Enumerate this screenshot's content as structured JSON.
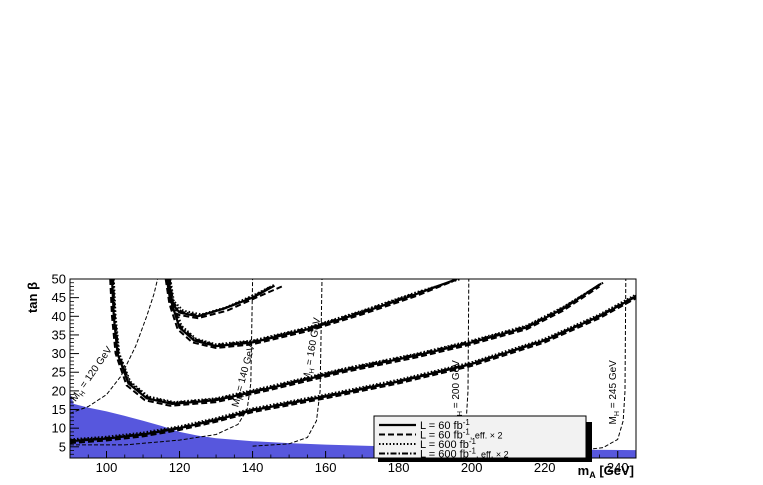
{
  "chart_data": {
    "type": "line",
    "title": "",
    "xlabel": "m_A [GeV]",
    "xlabel_main": "m",
    "xlabel_sub": "A",
    "xlabel_unit": " [GeV]",
    "ylabel": "tan β",
    "xlim": [
      90,
      245
    ],
    "ylim": [
      2,
      50
    ],
    "xticks": [
      100,
      120,
      140,
      160,
      180,
      200,
      220,
      240
    ],
    "yticks": [
      5,
      10,
      15,
      20,
      25,
      30,
      35,
      40,
      45,
      50
    ],
    "grid": false,
    "excluded_region": {
      "color": "#5757dd",
      "boundary": [
        [
          90,
          19.5
        ],
        [
          91,
          16.5
        ],
        [
          95,
          15.5
        ],
        [
          100,
          14.5
        ],
        [
          105,
          13.3
        ],
        [
          110,
          12.0
        ],
        [
          115,
          10.6
        ],
        [
          120,
          9.0
        ],
        [
          125,
          8.0
        ],
        [
          130,
          7.3
        ],
        [
          140,
          6.5
        ],
        [
          150,
          6.0
        ],
        [
          160,
          5.6
        ],
        [
          180,
          5.0
        ],
        [
          200,
          4.6
        ],
        [
          220,
          4.3
        ],
        [
          245,
          4.1
        ]
      ]
    },
    "series": [
      {
        "style": "solid",
        "points": [
          [
            116.5,
            50
          ],
          [
            117.5,
            44
          ],
          [
            120,
            41
          ],
          [
            125,
            40
          ],
          [
            132,
            42
          ],
          [
            140,
            45
          ],
          [
            146,
            48.2
          ]
        ]
      },
      {
        "style": "dashed",
        "points": [
          [
            116.2,
            50
          ],
          [
            117.2,
            43.5
          ],
          [
            119,
            40.5
          ],
          [
            125,
            39.5
          ],
          [
            133,
            41.5
          ],
          [
            141,
            45
          ],
          [
            148,
            48
          ]
        ]
      },
      {
        "style": "dotted",
        "points": [
          [
            117,
            50
          ],
          [
            118,
            44.5
          ],
          [
            121,
            41.5
          ],
          [
            126,
            40.5
          ],
          [
            133,
            42.5
          ],
          [
            141,
            46
          ],
          [
            145,
            48
          ]
        ]
      },
      {
        "style": "dashdot",
        "points": [
          [
            116.8,
            50
          ],
          [
            117.8,
            44.2
          ],
          [
            120.5,
            41.2
          ],
          [
            125.5,
            40.2
          ],
          [
            132.5,
            42.2
          ],
          [
            140.5,
            45.5
          ],
          [
            146,
            48.5
          ]
        ]
      },
      {
        "style": "solid",
        "points": [
          [
            101.5,
            50
          ],
          [
            102,
            40
          ],
          [
            103,
            30
          ],
          [
            106,
            22
          ],
          [
            111,
            18
          ],
          [
            118,
            16.5
          ],
          [
            130,
            17.5
          ],
          [
            145,
            20.8
          ],
          [
            165,
            25.5
          ],
          [
            185,
            29.5
          ],
          [
            200,
            33
          ],
          [
            215,
            37
          ],
          [
            225,
            42
          ],
          [
            235,
            48.5
          ]
        ]
      },
      {
        "style": "dashed",
        "points": [
          [
            101,
            50
          ],
          [
            101.5,
            40
          ],
          [
            102.5,
            30
          ],
          [
            105.5,
            21.5
          ],
          [
            110.5,
            17.5
          ],
          [
            117.5,
            16
          ],
          [
            130,
            17
          ],
          [
            145,
            20.3
          ],
          [
            165,
            25
          ],
          [
            185,
            29
          ],
          [
            200,
            32.5
          ],
          [
            215,
            36.5
          ],
          [
            225,
            41.5
          ],
          [
            235,
            48
          ]
        ]
      },
      {
        "style": "dotted",
        "points": [
          [
            102,
            50
          ],
          [
            102.5,
            40
          ],
          [
            103.5,
            30
          ],
          [
            106.5,
            22.5
          ],
          [
            111.5,
            18.5
          ],
          [
            118.5,
            17
          ],
          [
            130,
            18
          ],
          [
            145,
            21.3
          ],
          [
            165,
            26
          ],
          [
            185,
            30
          ],
          [
            200,
            33.5
          ],
          [
            215,
            37.5
          ],
          [
            225,
            42.5
          ],
          [
            236,
            49
          ]
        ]
      },
      {
        "style": "dashdot",
        "points": [
          [
            101.8,
            50
          ],
          [
            102.3,
            40
          ],
          [
            103.3,
            30
          ],
          [
            106.3,
            22.3
          ],
          [
            111.3,
            18.3
          ],
          [
            118.3,
            16.8
          ],
          [
            130,
            17.8
          ],
          [
            145,
            21
          ],
          [
            165,
            25.8
          ],
          [
            185,
            29.8
          ],
          [
            200,
            33.3
          ],
          [
            215,
            37.3
          ],
          [
            225,
            42.3
          ],
          [
            235.5,
            48.8
          ]
        ]
      },
      {
        "style": "solid",
        "points": [
          [
            117,
            50
          ],
          [
            118,
            43
          ],
          [
            120,
            37
          ],
          [
            124,
            33.5
          ],
          [
            130,
            32
          ],
          [
            140,
            33
          ],
          [
            155,
            36.5
          ],
          [
            170,
            41
          ],
          [
            185,
            46
          ],
          [
            196,
            50
          ]
        ]
      },
      {
        "style": "dashed",
        "points": [
          [
            116.5,
            50
          ],
          [
            117.5,
            42.5
          ],
          [
            119.5,
            36.5
          ],
          [
            123.5,
            33
          ],
          [
            130,
            31.5
          ],
          [
            140,
            32.5
          ],
          [
            155,
            36
          ],
          [
            170,
            40.5
          ],
          [
            185,
            45.5
          ],
          [
            195,
            49.5
          ]
        ]
      },
      {
        "style": "dotted",
        "points": [
          [
            117.5,
            50
          ],
          [
            118.5,
            43.5
          ],
          [
            120.5,
            37.5
          ],
          [
            124.5,
            34
          ],
          [
            130,
            32.5
          ],
          [
            140,
            33.5
          ],
          [
            155,
            37
          ],
          [
            170,
            41.5
          ],
          [
            185,
            46.5
          ],
          [
            197,
            50
          ]
        ]
      },
      {
        "style": "dashdot",
        "points": [
          [
            117.3,
            50
          ],
          [
            118.3,
            43.3
          ],
          [
            120.3,
            37.3
          ],
          [
            124.3,
            33.8
          ],
          [
            130,
            32.3
          ],
          [
            140,
            33.3
          ],
          [
            155,
            36.8
          ],
          [
            170,
            41.3
          ],
          [
            185,
            46.3
          ],
          [
            196.5,
            50
          ]
        ]
      },
      {
        "style": "solid",
        "points": [
          [
            90,
            6.5
          ],
          [
            100,
            7.2
          ],
          [
            110,
            8.3
          ],
          [
            120,
            10.0
          ],
          [
            130,
            12.2
          ],
          [
            140,
            14.8
          ],
          [
            160,
            18.5
          ],
          [
            180,
            22.5
          ],
          [
            200,
            27.2
          ],
          [
            220,
            33.5
          ],
          [
            235,
            40
          ],
          [
            250,
            48
          ]
        ]
      },
      {
        "style": "dashed",
        "points": [
          [
            90,
            6
          ],
          [
            100,
            6.7
          ],
          [
            110,
            7.8
          ],
          [
            120,
            9.5
          ],
          [
            130,
            11.7
          ],
          [
            140,
            14.3
          ],
          [
            160,
            18
          ],
          [
            180,
            22
          ],
          [
            200,
            26.7
          ],
          [
            220,
            33
          ],
          [
            235,
            39.5
          ],
          [
            250,
            47.5
          ]
        ]
      },
      {
        "style": "dotted",
        "points": [
          [
            90,
            7
          ],
          [
            100,
            7.7
          ],
          [
            110,
            8.8
          ],
          [
            120,
            10.5
          ],
          [
            130,
            12.7
          ],
          [
            140,
            15.3
          ],
          [
            160,
            19
          ],
          [
            180,
            23
          ],
          [
            200,
            27.7
          ],
          [
            220,
            34
          ],
          [
            235,
            40.5
          ],
          [
            250,
            48.5
          ]
        ]
      },
      {
        "style": "dashdot",
        "points": [
          [
            90,
            6.7
          ],
          [
            100,
            7.4
          ],
          [
            110,
            8.5
          ],
          [
            120,
            10.2
          ],
          [
            130,
            12.4
          ],
          [
            140,
            15
          ],
          [
            160,
            18.7
          ],
          [
            180,
            22.7
          ],
          [
            200,
            27.4
          ],
          [
            220,
            33.7
          ],
          [
            235,
            40.2
          ],
          [
            250,
            48.2
          ]
        ]
      },
      {
        "style": "dashed-thin",
        "points": [
          [
            90,
            14
          ],
          [
            95,
            15.8
          ],
          [
            100,
            19
          ],
          [
            104,
            24
          ],
          [
            108,
            32
          ],
          [
            111,
            40
          ],
          [
            113,
            46
          ],
          [
            114,
            50
          ]
        ]
      },
      {
        "style": "dashed-thin",
        "points": [
          [
            90,
            5.5
          ],
          [
            105,
            5.5
          ],
          [
            120,
            6.8
          ],
          [
            130,
            8.3
          ],
          [
            136,
            11
          ],
          [
            138.5,
            15
          ],
          [
            139.5,
            22
          ],
          [
            140,
            50
          ]
        ]
      },
      {
        "style": "dashed-thin",
        "points": [
          [
            140,
            5.2
          ],
          [
            150,
            5.8
          ],
          [
            155,
            7.5
          ],
          [
            157.5,
            12
          ],
          [
            158.5,
            20
          ],
          [
            159,
            50
          ]
        ]
      },
      {
        "style": "dashed-thin",
        "points": [
          [
            185,
            4.5
          ],
          [
            193,
            5.2
          ],
          [
            197,
            7
          ],
          [
            198.5,
            12
          ],
          [
            199,
            20
          ],
          [
            199.2,
            50
          ]
        ]
      },
      {
        "style": "dashed-thin",
        "points": [
          [
            230,
            4.1
          ],
          [
            236,
            4.8
          ],
          [
            240,
            7
          ],
          [
            241.5,
            12
          ],
          [
            242,
            20
          ],
          [
            242.2,
            50
          ]
        ]
      }
    ],
    "curve_labels": [
      {
        "text": "M",
        "sub": "H",
        "rest": " = 120 GeV",
        "x": 91.5,
        "y": 17,
        "rotate": -55
      },
      {
        "text": "M",
        "sub": "H",
        "rest": " = 140 GeV",
        "x": 136,
        "y": 15.5,
        "rotate": -75
      },
      {
        "text": "M",
        "sub": "H",
        "rest": " = 160 GeV",
        "x": 155.5,
        "y": 22.5,
        "rotate": -80
      },
      {
        "text": "M",
        "sub": "H",
        "rest": " = 200 GeV",
        "x": 196.5,
        "y": 11,
        "rotate": -90
      },
      {
        "text": "M",
        "sub": "H",
        "rest": " = 245 GeV",
        "x": 239.5,
        "y": 11,
        "rotate": -90
      }
    ],
    "legend": {
      "placement": "bottom-right",
      "entries": [
        {
          "style": "solid",
          "text": "L = 60 fb",
          "sup": "-1",
          "extra": ""
        },
        {
          "style": "dashed",
          "text": "L = 60 fb",
          "sup": "-1",
          "extra": ", eff. × 2"
        },
        {
          "style": "dotted",
          "text": "L = 600 fb",
          "sup": "-1",
          "extra": ""
        },
        {
          "style": "dashdot",
          "text": "L = 600 fb",
          "sup": "-1",
          "extra": ", eff. × 2"
        }
      ]
    }
  }
}
